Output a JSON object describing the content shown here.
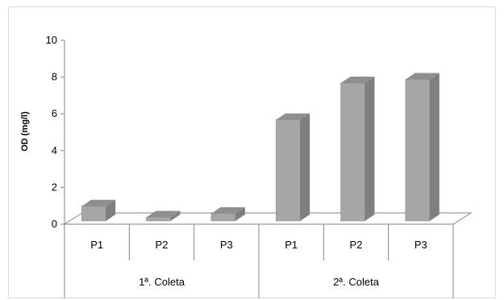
{
  "chart_data": {
    "type": "bar",
    "style": "3d-column",
    "ylabel": "OD (mg/l)",
    "ylim": [
      0,
      10
    ],
    "yticks": [
      0,
      2,
      4,
      6,
      8,
      10
    ],
    "categories": [
      "P1",
      "P2",
      "P3",
      "P1",
      "P2",
      "P3"
    ],
    "groups": [
      {
        "label": "1ª. Coleta",
        "categories": [
          "P1",
          "P2",
          "P3"
        ]
      },
      {
        "label": "2ª. Coleta",
        "categories": [
          "P1",
          "P2",
          "P3"
        ]
      }
    ],
    "values": [
      0.8,
      0.2,
      0.4,
      5.5,
      7.5,
      7.7
    ],
    "grid": false,
    "legend": false,
    "colors": {
      "bar_front": "#a6a6a6",
      "bar_side": "#7f7f7f",
      "bar_top": "#8f8f8f",
      "axis": "#868686"
    }
  }
}
